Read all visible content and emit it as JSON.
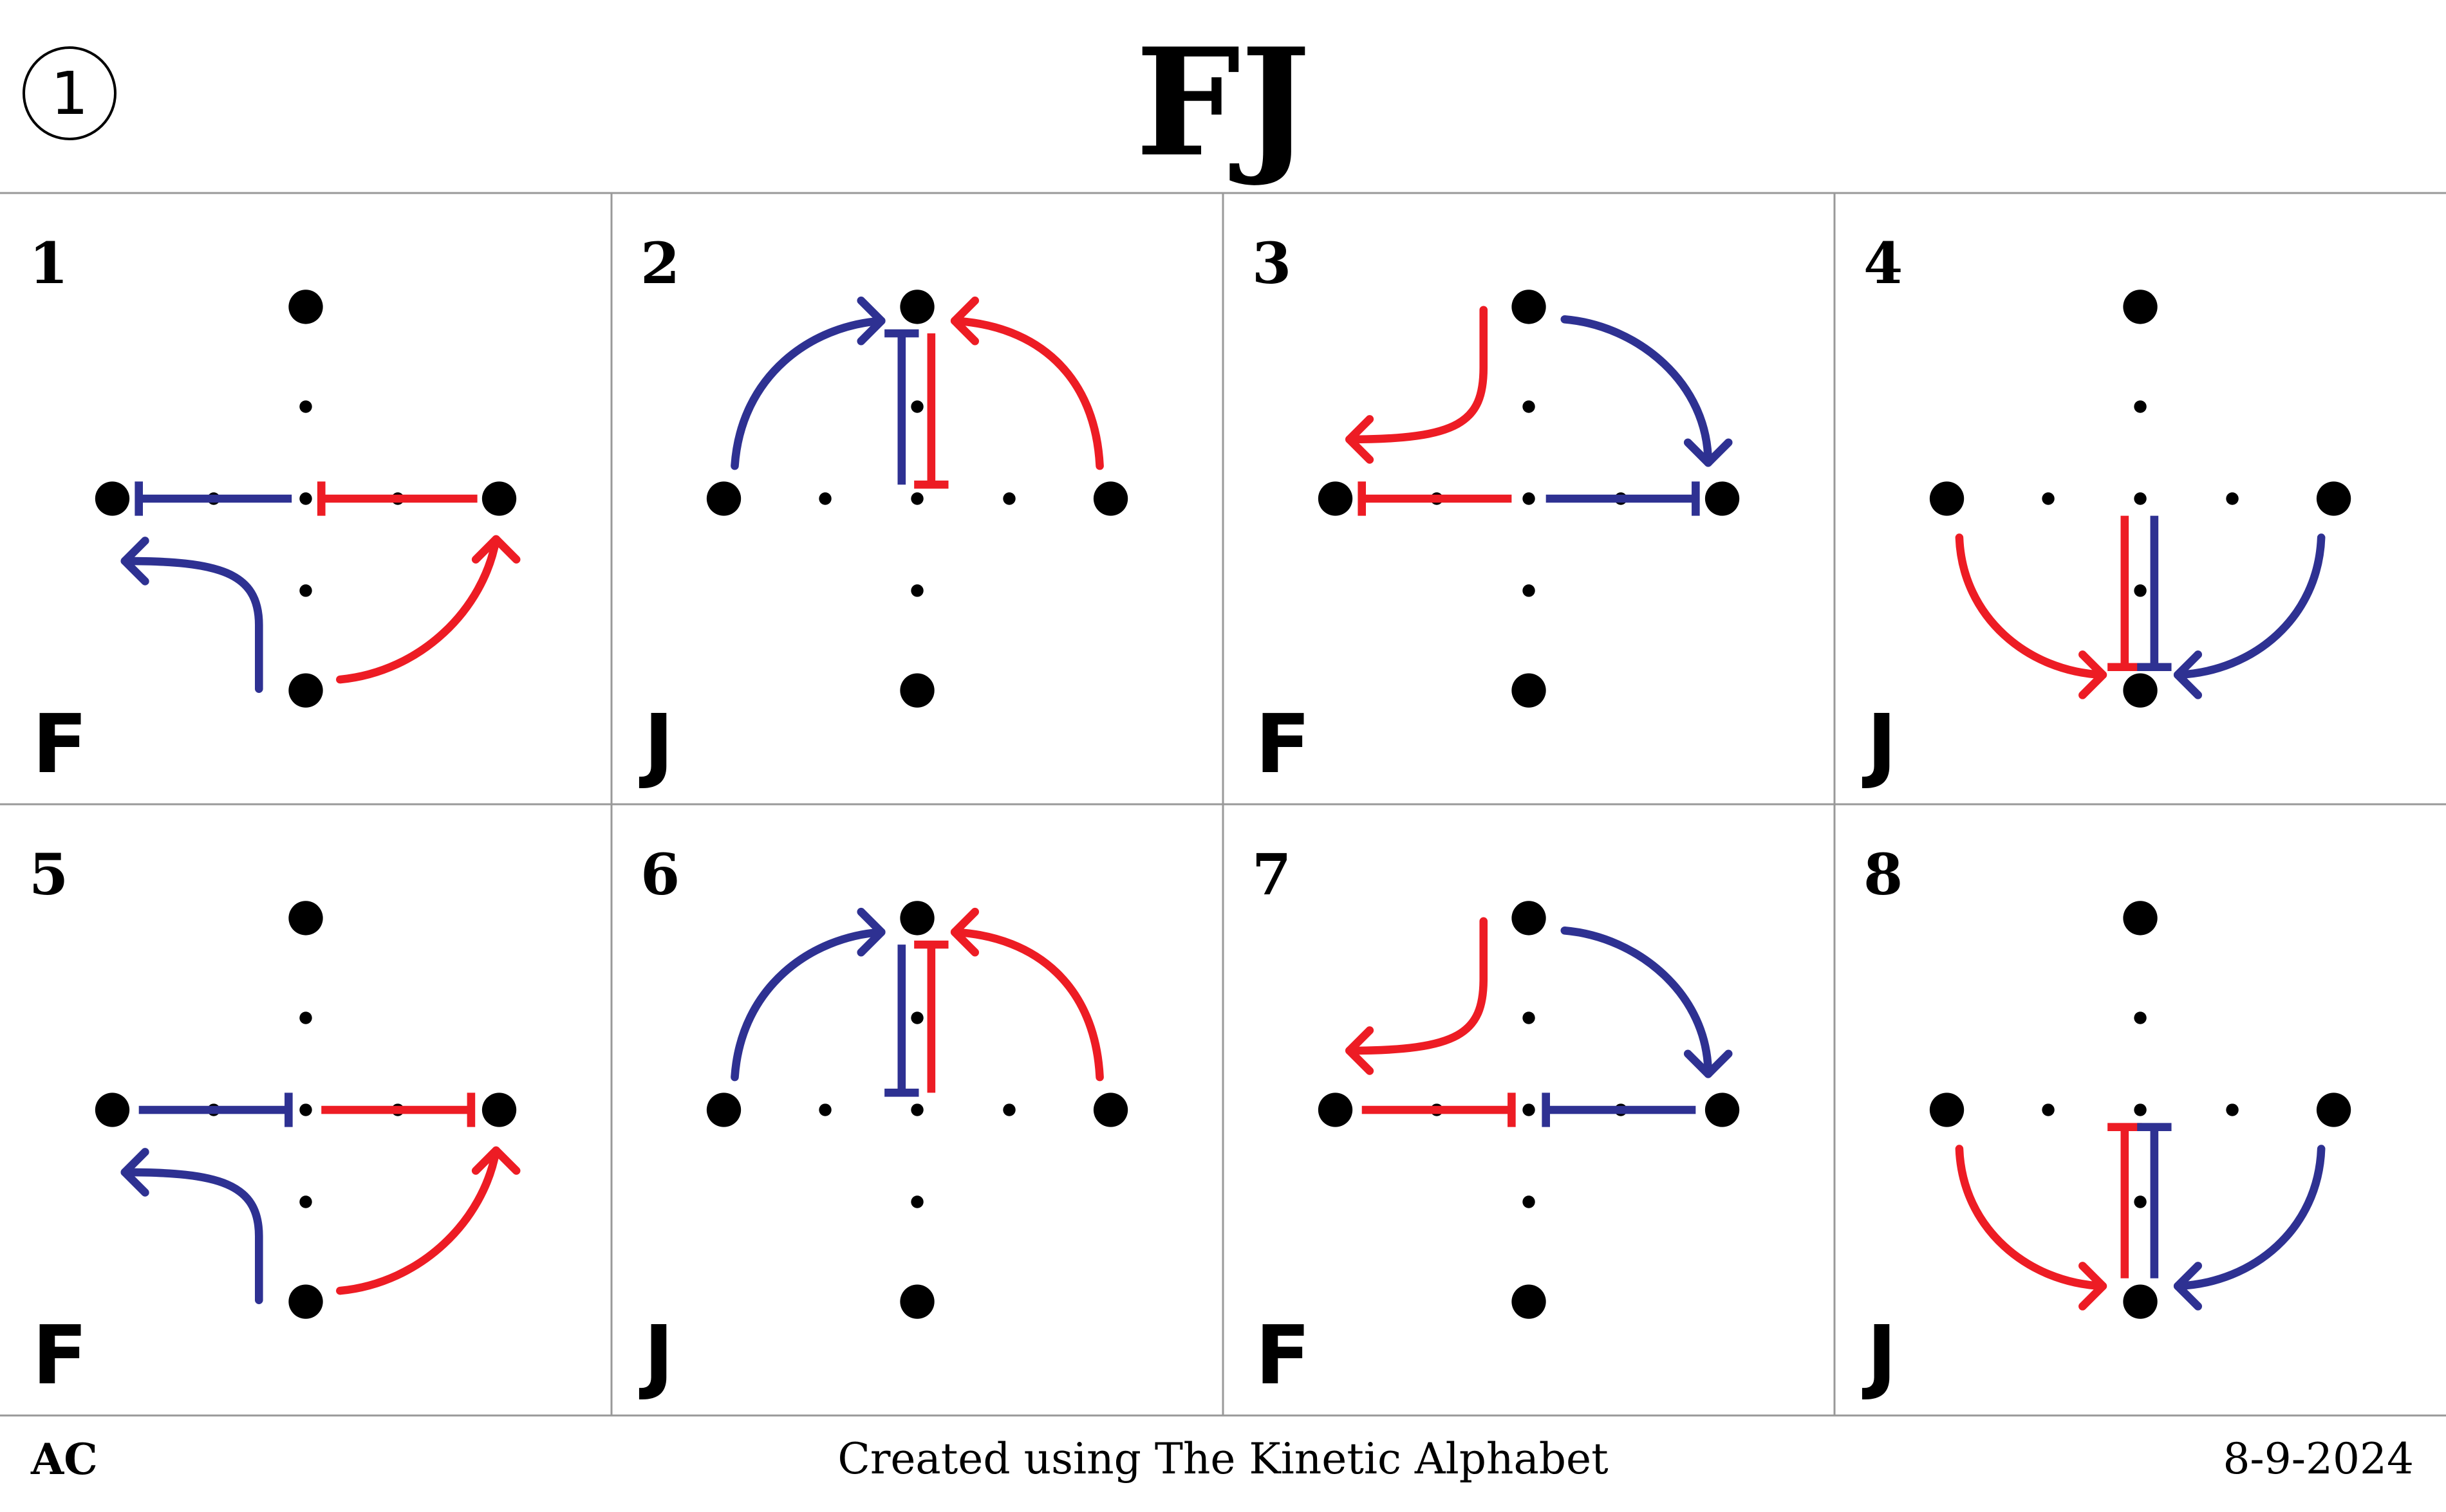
{
  "header": {
    "page_number": "1",
    "title": "FJ"
  },
  "colors": {
    "blue": "#2e3192",
    "red": "#ed1c24",
    "dot": "#000000",
    "grid_line": "#999999"
  },
  "panels": [
    {
      "number": "1",
      "letter": "F"
    },
    {
      "number": "2",
      "letter": "J"
    },
    {
      "number": "3",
      "letter": "F"
    },
    {
      "number": "4",
      "letter": "J"
    },
    {
      "number": "5",
      "letter": "F"
    },
    {
      "number": "6",
      "letter": "J"
    },
    {
      "number": "7",
      "letter": "F"
    },
    {
      "number": "8",
      "letter": "J"
    }
  ],
  "footer": {
    "left": "AC",
    "center": "Created using The Kinetic Alphabet",
    "right": "8-9-2024"
  }
}
